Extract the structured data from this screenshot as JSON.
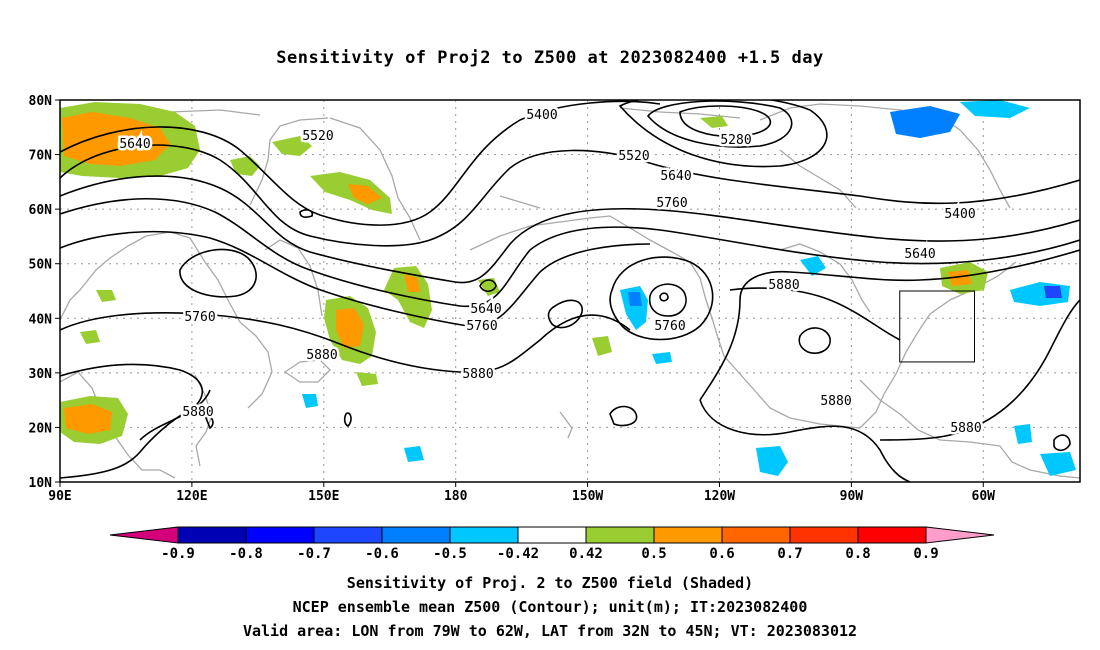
{
  "title": "Sensitivity of Proj2 to Z500 at 2023082400 +1.5 day",
  "map": {
    "lon_labels": [
      "90E",
      "120E",
      "150E",
      "180",
      "150W",
      "120W",
      "90W",
      "60W"
    ],
    "lat_labels": [
      "10N",
      "20N",
      "30N",
      "40N",
      "50N",
      "60N",
      "70N",
      "80N"
    ],
    "contour_labels": [
      "5400",
      "5280",
      "5520",
      "5640",
      "5760",
      "5640",
      "5520",
      "5400",
      "5640",
      "5880",
      "5760",
      "5640",
      "5760",
      "5760",
      "5880",
      "5880",
      "5880",
      "5880",
      "5880"
    ],
    "valid_box": {
      "lon_min": -79,
      "lon_max": -62,
      "lat_min": 32,
      "lat_max": 45
    }
  },
  "colorbar": {
    "ticks": [
      "-0.9",
      "-0.8",
      "-0.7",
      "-0.6",
      "-0.5",
      "-0.42",
      "0.42",
      "0.5",
      "0.6",
      "0.7",
      "0.8",
      "0.9"
    ],
    "colors": [
      "#d4007a",
      "#0000b4",
      "#0000ff",
      "#1e46ff",
      "#0080ff",
      "#00c8ff",
      "#ffffff",
      "#9acd32",
      "#ff9900",
      "#ff6600",
      "#ff3300",
      "#ff0000",
      "#ff9ecb"
    ]
  },
  "caption": {
    "line1": "Sensitivity of Proj. 2 to Z500 field (Shaded)",
    "line2": "NCEP ensemble mean Z500 (Contour); unit(m); IT:2023082400",
    "line3": "Valid area: LON from 79W to 62W, LAT from 32N to 45N; VT: 2023083012"
  }
}
